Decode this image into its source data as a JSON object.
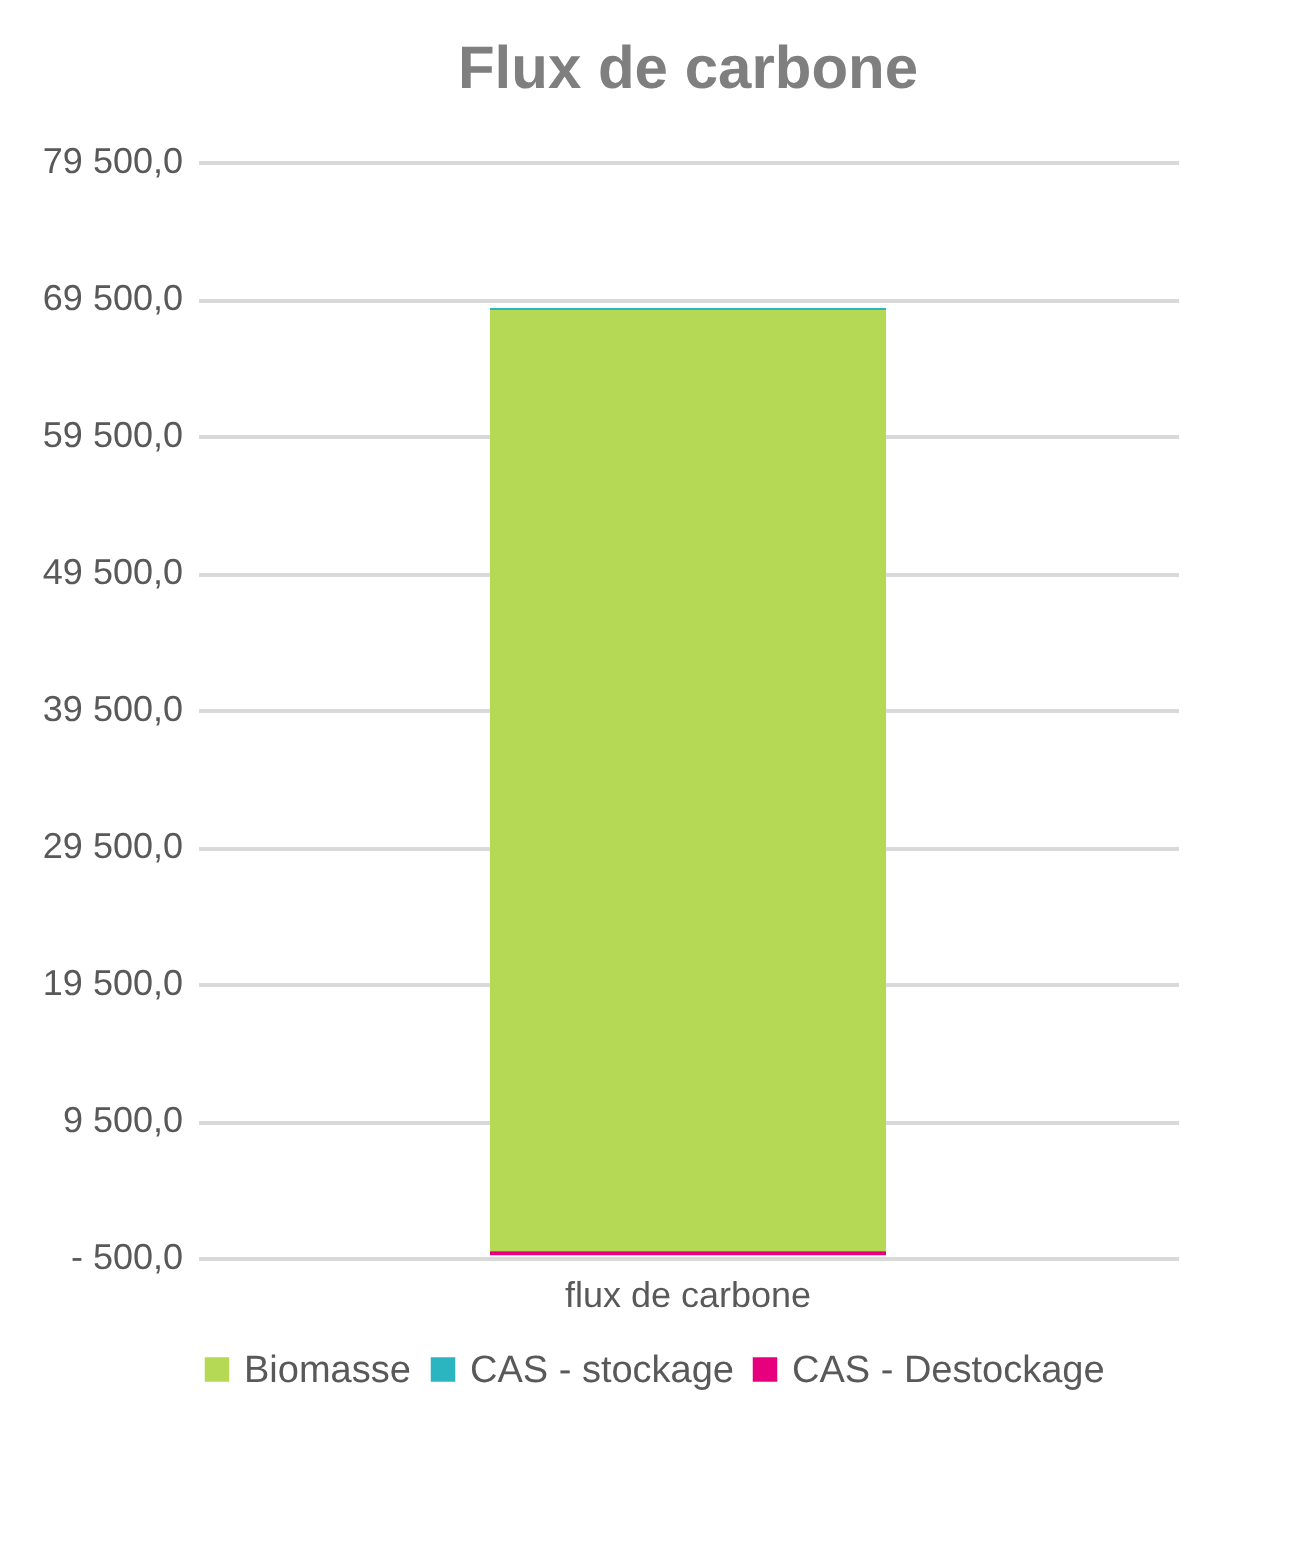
{
  "chart_data": {
    "type": "bar",
    "title": "Flux de carbone",
    "categories": [
      "flux de carbone"
    ],
    "stacked": true,
    "series": [
      {
        "name": "Biomasse",
        "color": "#b5d955",
        "values": [
          68700
        ]
      },
      {
        "name": "CAS - stockage",
        "color": "#2bb5c0",
        "values": [
          150
        ]
      },
      {
        "name": "CAS - Destockage",
        "color": "#e6007e",
        "values": [
          -300
        ]
      }
    ],
    "ylim": [
      -500,
      79500
    ],
    "yticks": [
      {
        "value": -500,
        "label": "- 500,0"
      },
      {
        "value": 9500,
        "label": "9 500,0"
      },
      {
        "value": 19500,
        "label": "19 500,0"
      },
      {
        "value": 29500,
        "label": "29 500,0"
      },
      {
        "value": 39500,
        "label": "39 500,0"
      },
      {
        "value": 49500,
        "label": "49 500,0"
      },
      {
        "value": 59500,
        "label": "59 500,0"
      },
      {
        "value": 69500,
        "label": "69 500,0"
      },
      {
        "value": 79500,
        "label": "79 500,0"
      }
    ],
    "grid": "y",
    "legend": "bottom"
  }
}
